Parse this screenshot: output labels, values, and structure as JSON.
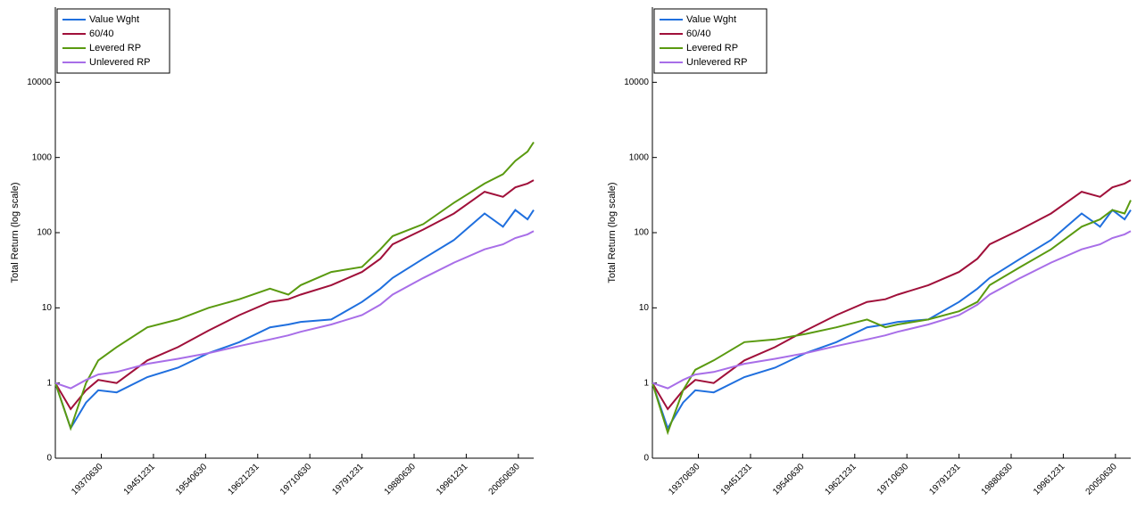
{
  "chart_data": [
    {
      "type": "line",
      "ylabel": "Total Return (log scale)",
      "yscale": "log",
      "legend": "upper left",
      "x": [
        1930,
        1932.5,
        1935,
        1937,
        1940,
        1945,
        1950,
        1955,
        1960,
        1965,
        1968,
        1970,
        1975,
        1980,
        1983,
        1985,
        1990,
        1995,
        2000,
        2003,
        2005,
        2007,
        2008
      ],
      "xlim": [
        1930,
        2008
      ],
      "xticks": [
        {
          "value": 1937.5,
          "label": "19370630"
        },
        {
          "value": 1946,
          "label": "19451231"
        },
        {
          "value": 1954.5,
          "label": "19540630"
        },
        {
          "value": 1963,
          "label": "19621231"
        },
        {
          "value": 1971.5,
          "label": "19710630"
        },
        {
          "value": 1980,
          "label": "19791231"
        },
        {
          "value": 1988.5,
          "label": "19880630"
        },
        {
          "value": 1997,
          "label": "19961231"
        },
        {
          "value": 2005.5,
          "label": "20050630"
        }
      ],
      "ylim": [
        0.1,
        100000
      ],
      "yticks": [
        {
          "value": 0.1,
          "label": "0"
        },
        1,
        10,
        100,
        1000,
        10000
      ],
      "series": [
        {
          "name": "Value Wght",
          "color": "#1f6fde",
          "values": [
            1,
            0.25,
            0.55,
            0.8,
            0.75,
            1.2,
            1.6,
            2.5,
            3.5,
            5.5,
            6,
            6.5,
            7,
            12,
            18,
            25,
            45,
            80,
            180,
            120,
            200,
            150,
            200
          ]
        },
        {
          "name": "60/40",
          "color": "#a0103a",
          "values": [
            1,
            0.45,
            0.8,
            1.1,
            1.0,
            2,
            3,
            5,
            8,
            12,
            13,
            15,
            20,
            30,
            45,
            70,
            110,
            180,
            350,
            300,
            400,
            450,
            500
          ]
        },
        {
          "name": "Levered RP",
          "color": "#5a9a10",
          "values": [
            1,
            0.25,
            1,
            2,
            3,
            5.5,
            7,
            10,
            13,
            18,
            15,
            20,
            30,
            35,
            60,
            90,
            130,
            250,
            450,
            600,
            900,
            1200,
            1600
          ]
        },
        {
          "name": "Unlevered RP",
          "color": "#a86ee8",
          "values": [
            1,
            0.85,
            1.1,
            1.3,
            1.4,
            1.8,
            2.1,
            2.5,
            3.1,
            3.8,
            4.3,
            4.8,
            6,
            8,
            11,
            15,
            25,
            40,
            60,
            70,
            85,
            95,
            105
          ]
        }
      ]
    },
    {
      "type": "line",
      "ylabel": "Total Return (log scale)",
      "yscale": "log",
      "legend": "upper left",
      "x": [
        1930,
        1932.5,
        1935,
        1937,
        1940,
        1945,
        1950,
        1955,
        1960,
        1965,
        1968,
        1970,
        1975,
        1980,
        1983,
        1985,
        1990,
        1995,
        2000,
        2003,
        2005,
        2007,
        2008
      ],
      "xlim": [
        1930,
        2008
      ],
      "xticks": [
        {
          "value": 1937.5,
          "label": "19370630"
        },
        {
          "value": 1946,
          "label": "19451231"
        },
        {
          "value": 1954.5,
          "label": "19540630"
        },
        {
          "value": 1963,
          "label": "19621231"
        },
        {
          "value": 1971.5,
          "label": "19710630"
        },
        {
          "value": 1980,
          "label": "19791231"
        },
        {
          "value": 1988.5,
          "label": "19880630"
        },
        {
          "value": 1997,
          "label": "19961231"
        },
        {
          "value": 2005.5,
          "label": "20050630"
        }
      ],
      "ylim": [
        0.1,
        100000
      ],
      "yticks": [
        {
          "value": 0.1,
          "label": "0"
        },
        1,
        10,
        100,
        1000,
        10000
      ],
      "series": [
        {
          "name": "Value Wght",
          "color": "#1f6fde",
          "values": [
            1,
            0.25,
            0.55,
            0.8,
            0.75,
            1.2,
            1.6,
            2.5,
            3.5,
            5.5,
            6,
            6.5,
            7,
            12,
            18,
            25,
            45,
            80,
            180,
            120,
            200,
            150,
            200
          ]
        },
        {
          "name": "60/40",
          "color": "#a0103a",
          "values": [
            1,
            0.45,
            0.8,
            1.1,
            1.0,
            2,
            3,
            5,
            8,
            12,
            13,
            15,
            20,
            30,
            45,
            70,
            110,
            180,
            350,
            300,
            400,
            450,
            500
          ]
        },
        {
          "name": "Levered RP",
          "color": "#5a9a10",
          "values": [
            1,
            0.22,
            0.8,
            1.5,
            2,
            3.5,
            3.8,
            4.5,
            5.5,
            7,
            5.5,
            6,
            7,
            9,
            12,
            20,
            35,
            60,
            120,
            150,
            200,
            180,
            270
          ]
        },
        {
          "name": "Unlevered RP",
          "color": "#a86ee8",
          "values": [
            1,
            0.85,
            1.1,
            1.3,
            1.4,
            1.8,
            2.1,
            2.5,
            3.1,
            3.8,
            4.3,
            4.8,
            6,
            8,
            11,
            15,
            25,
            40,
            60,
            70,
            85,
            95,
            105
          ]
        }
      ]
    }
  ]
}
